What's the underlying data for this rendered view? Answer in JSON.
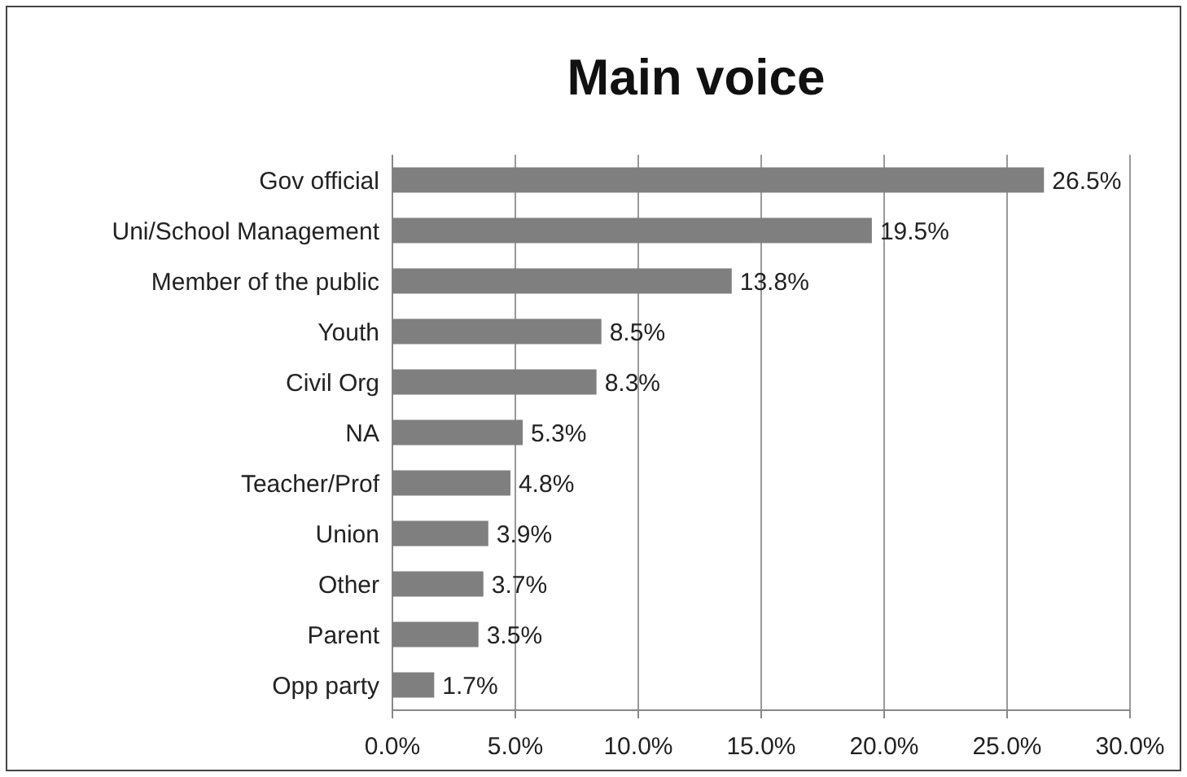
{
  "chart_data": {
    "type": "bar",
    "orientation": "horizontal",
    "title": "Main voice",
    "categories": [
      "Gov official",
      "Uni/School Management",
      "Member of the public",
      "Youth",
      "Civil Org",
      "NA",
      "Teacher/Prof",
      "Union",
      "Other",
      "Parent",
      "Opp party"
    ],
    "values": [
      26.5,
      19.5,
      13.8,
      8.5,
      8.3,
      5.3,
      4.8,
      3.9,
      3.7,
      3.5,
      1.7
    ],
    "value_labels": [
      "26.5%",
      "19.5%",
      "13.8%",
      "8.5%",
      "8.3%",
      "5.3%",
      "4.8%",
      "3.9%",
      "3.7%",
      "3.5%",
      "1.7%"
    ],
    "color": "#7f7f7f",
    "xlim": [
      0,
      30
    ],
    "xticks": [
      {
        "value": 0,
        "label": "0.0%"
      },
      {
        "value": 5,
        "label": "5.0%"
      },
      {
        "value": 10,
        "label": "10.0%"
      },
      {
        "value": 15,
        "label": "15.0%"
      },
      {
        "value": 20,
        "label": "20.0%"
      },
      {
        "value": 25,
        "label": "25.0%"
      },
      {
        "value": 30,
        "label": "30.0%"
      }
    ],
    "grid": "x"
  }
}
